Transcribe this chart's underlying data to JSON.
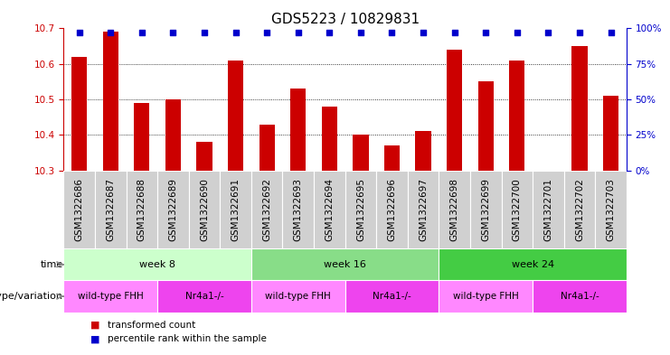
{
  "title": "GDS5223 / 10829831",
  "samples": [
    "GSM1322686",
    "GSM1322687",
    "GSM1322688",
    "GSM1322689",
    "GSM1322690",
    "GSM1322691",
    "GSM1322692",
    "GSM1322693",
    "GSM1322694",
    "GSM1322695",
    "GSM1322696",
    "GSM1322697",
    "GSM1322698",
    "GSM1322699",
    "GSM1322700",
    "GSM1322701",
    "GSM1322702",
    "GSM1322703"
  ],
  "transformed_count": [
    10.62,
    10.69,
    10.49,
    10.5,
    10.38,
    10.61,
    10.43,
    10.53,
    10.48,
    10.4,
    10.37,
    10.41,
    10.64,
    10.55,
    10.61,
    10.3,
    10.65,
    10.51
  ],
  "percentile_rank": [
    97,
    97,
    97,
    97,
    97,
    97,
    97,
    97,
    97,
    97,
    97,
    97,
    97,
    97,
    97,
    97,
    97,
    97
  ],
  "ylim_left": [
    10.3,
    10.7
  ],
  "ylim_right": [
    0,
    100
  ],
  "yticks_left": [
    10.3,
    10.4,
    10.5,
    10.6,
    10.7
  ],
  "yticks_right": [
    0,
    25,
    50,
    75,
    100
  ],
  "bar_color": "#cc0000",
  "dot_color": "#0000cc",
  "bar_width": 0.5,
  "time_groups": [
    {
      "label": "week 8",
      "start": 0,
      "end": 5,
      "color": "#ccffcc"
    },
    {
      "label": "week 16",
      "start": 6,
      "end": 11,
      "color": "#88dd88"
    },
    {
      "label": "week 24",
      "start": 12,
      "end": 17,
      "color": "#44cc44"
    }
  ],
  "genotype_groups": [
    {
      "label": "wild-type FHH",
      "start": 0,
      "end": 2,
      "color": "#ff88ff"
    },
    {
      "label": "Nr4a1-/-",
      "start": 3,
      "end": 5,
      "color": "#ee44ee"
    },
    {
      "label": "wild-type FHH",
      "start": 6,
      "end": 8,
      "color": "#ff88ff"
    },
    {
      "label": "Nr4a1-/-",
      "start": 9,
      "end": 11,
      "color": "#ee44ee"
    },
    {
      "label": "wild-type FHH",
      "start": 12,
      "end": 14,
      "color": "#ff88ff"
    },
    {
      "label": "Nr4a1-/-",
      "start": 15,
      "end": 17,
      "color": "#ee44ee"
    }
  ],
  "legend_items": [
    {
      "label": "transformed count",
      "color": "#cc0000"
    },
    {
      "label": "percentile rank within the sample",
      "color": "#0000cc"
    }
  ],
  "time_label": "time",
  "genotype_label": "genotype/variation",
  "title_fontsize": 11,
  "tick_fontsize": 7.5,
  "label_fontsize": 8,
  "dotted_lines": [
    10.4,
    10.5,
    10.6
  ],
  "xticklabel_bg": "#d0d0d0",
  "arrow_color": "#888888"
}
